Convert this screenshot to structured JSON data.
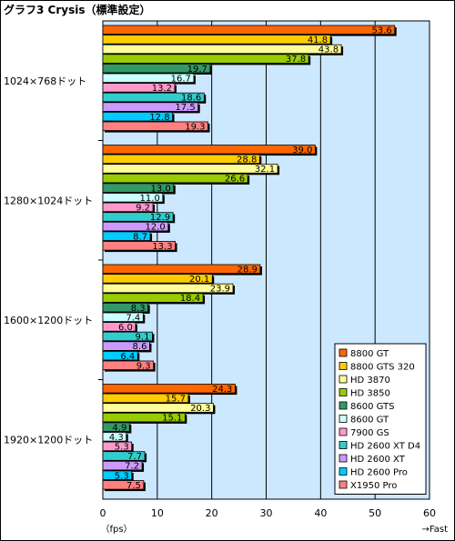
{
  "title": "グラフ3  Crysis（標準設定）",
  "chart_data": {
    "type": "bar",
    "orientation": "horizontal",
    "title": "グラフ3  Crysis（標準設定）",
    "xlabel": "（fps）",
    "xlabel_right": "→Fast",
    "xlim": [
      0,
      60
    ],
    "xticks": [
      0,
      10,
      20,
      30,
      40,
      50,
      60
    ],
    "grid": true,
    "plot_background": "#cce8ff",
    "legend_position": "bottom-right",
    "categories": [
      "1024×768ドット",
      "1280×1024ドット",
      "1600×1200ドット",
      "1920×1200ドット"
    ],
    "series": [
      {
        "name": "8800 GT",
        "color": "#ff6600",
        "values": [
          53.6,
          39.0,
          28.9,
          24.3
        ]
      },
      {
        "name": "8800 GTS 320",
        "color": "#ffcc00",
        "values": [
          41.8,
          28.8,
          20.1,
          15.7
        ]
      },
      {
        "name": "HD 3870",
        "color": "#ffff99",
        "values": [
          43.8,
          32.1,
          23.9,
          20.3
        ]
      },
      {
        "name": "HD 3850",
        "color": "#99cc00",
        "values": [
          37.8,
          26.6,
          18.4,
          15.1
        ]
      },
      {
        "name": "8600 GTS",
        "color": "#339966",
        "values": [
          19.7,
          13.0,
          8.3,
          4.9
        ]
      },
      {
        "name": "8600 GT",
        "color": "#ccffff",
        "values": [
          16.7,
          11.0,
          7.4,
          4.3
        ]
      },
      {
        "name": "7900 GS",
        "color": "#ff99cc",
        "values": [
          13.2,
          9.2,
          6.0,
          5.3
        ]
      },
      {
        "name": "HD 2600 XT D4",
        "color": "#33cccc",
        "values": [
          18.6,
          12.9,
          9.1,
          7.7
        ]
      },
      {
        "name": "HD 2600 XT",
        "color": "#cc99ff",
        "values": [
          17.5,
          12.0,
          8.6,
          7.2
        ]
      },
      {
        "name": "HD 2600 Pro",
        "color": "#00ccff",
        "values": [
          12.8,
          8.7,
          6.4,
          5.3
        ]
      },
      {
        "name": "X1950 Pro",
        "color": "#ff8080",
        "values": [
          19.3,
          13.3,
          9.3,
          7.5
        ]
      }
    ]
  }
}
